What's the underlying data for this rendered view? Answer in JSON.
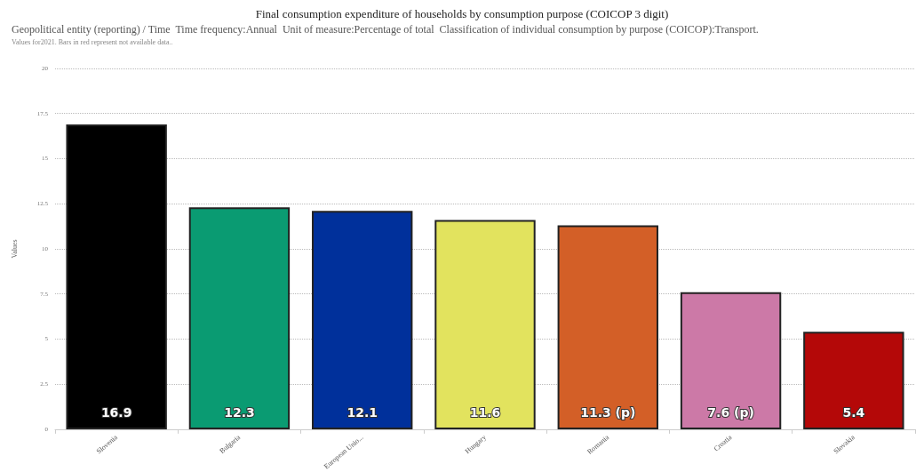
{
  "chart_data": {
    "type": "bar",
    "title": "Final consumption expenditure of households by consumption purpose (COICOP 3 digit)",
    "subtitle": "Geopolitical entity (reporting) / Time  Time frequency:Annual  Unit of measure:Percentage of total  Classification of individual consumption by purpose (COICOP):Transport.",
    "annotations": [
      "Values for2021. Bars in red represent not available data.."
    ],
    "ylabel": "Values",
    "categories": [
      "Slovenia",
      "Bulgaria",
      "European Unio...",
      "Hungary",
      "Romania",
      "Croatia",
      "Slovakia"
    ],
    "values": [
      16.9,
      12.3,
      12.1,
      11.6,
      11.3,
      7.6,
      5.4
    ],
    "colors": [
      "#000000",
      "#0a9b72",
      "#00309b",
      "#e2e35e",
      "#d35f27",
      "#cc79a7",
      "#b40808"
    ],
    "value_labels": [
      "16.9",
      "12.3",
      "12.1",
      "11.6",
      "11.3 (p)",
      "7.6 (p)",
      "5.4"
    ],
    "ylim": [
      0,
      20
    ],
    "yticks": [
      0,
      2.5,
      5,
      7.5,
      10,
      12.5,
      15,
      17.5,
      20
    ],
    "grid": "y"
  }
}
